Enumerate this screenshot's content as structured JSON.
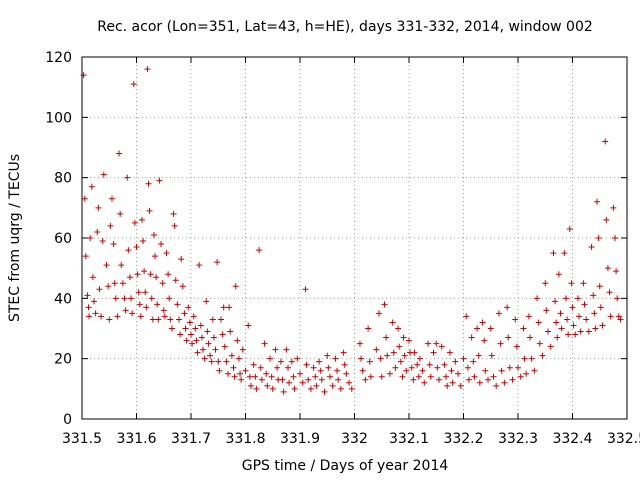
{
  "chart_data": {
    "type": "scatter",
    "title": "Rec. acor (Lon=351, Lat=43, h=HE), days 331-332, 2014, window 002",
    "xlabel": "GPS time / Days of year 2014",
    "ylabel": "STEC from uqrg / TECUs",
    "xlim": [
      331.5,
      332.5
    ],
    "ylim": [
      0,
      120
    ],
    "x_ticks": [
      "331.5",
      "331.6",
      "331.7",
      "331.8",
      "331.9",
      "332",
      "332.1",
      "332.2",
      "332.3",
      "332.4",
      "332.5"
    ],
    "y_ticks": [
      "0",
      "20",
      "40",
      "60",
      "80",
      "100",
      "120"
    ],
    "grid": true,
    "marker": "plus",
    "marker_color": "#cc0000",
    "series": [
      {
        "points": [
          [
            331.503,
            114
          ],
          [
            331.505,
            73
          ],
          [
            331.507,
            54
          ],
          [
            331.51,
            41
          ],
          [
            331.512,
            37
          ],
          [
            331.513,
            34
          ],
          [
            331.515,
            60
          ],
          [
            331.518,
            77
          ],
          [
            331.52,
            47
          ],
          [
            331.522,
            39
          ],
          [
            331.525,
            35
          ],
          [
            331.528,
            62
          ],
          [
            331.53,
            70
          ],
          [
            331.532,
            43
          ],
          [
            331.535,
            34
          ],
          [
            331.538,
            59
          ],
          [
            331.54,
            81
          ],
          [
            331.545,
            51
          ],
          [
            331.548,
            44
          ],
          [
            331.55,
            33
          ],
          [
            331.552,
            64
          ],
          [
            331.555,
            73
          ],
          [
            331.558,
            58
          ],
          [
            331.56,
            45
          ],
          [
            331.562,
            40
          ],
          [
            331.565,
            34
          ],
          [
            331.568,
            88
          ],
          [
            331.57,
            68
          ],
          [
            331.572,
            51
          ],
          [
            331.575,
            45
          ],
          [
            331.578,
            40
          ],
          [
            331.58,
            36
          ],
          [
            331.583,
            80
          ],
          [
            331.585,
            56
          ],
          [
            331.588,
            47
          ],
          [
            331.59,
            40
          ],
          [
            331.592,
            35
          ],
          [
            331.595,
            111
          ],
          [
            331.597,
            65
          ],
          [
            331.6,
            57
          ],
          [
            331.602,
            48
          ],
          [
            331.604,
            42
          ],
          [
            331.606,
            38
          ],
          [
            331.608,
            34
          ],
          [
            331.61,
            66
          ],
          [
            331.612,
            59
          ],
          [
            331.614,
            49
          ],
          [
            331.616,
            42
          ],
          [
            331.618,
            37
          ],
          [
            331.62,
            116
          ],
          [
            331.622,
            78
          ],
          [
            331.624,
            69
          ],
          [
            331.626,
            48
          ],
          [
            331.628,
            40
          ],
          [
            331.63,
            33
          ],
          [
            331.632,
            61
          ],
          [
            331.634,
            54
          ],
          [
            331.636,
            47
          ],
          [
            331.638,
            38
          ],
          [
            331.64,
            33
          ],
          [
            331.642,
            79
          ],
          [
            331.645,
            58
          ],
          [
            331.648,
            45
          ],
          [
            331.65,
            36
          ],
          [
            331.652,
            34
          ],
          [
            331.655,
            55
          ],
          [
            331.658,
            48
          ],
          [
            331.66,
            40
          ],
          [
            331.662,
            33
          ],
          [
            331.665,
            30
          ],
          [
            331.668,
            68
          ],
          [
            331.67,
            64
          ],
          [
            331.672,
            46
          ],
          [
            331.675,
            38
          ],
          [
            331.678,
            33
          ],
          [
            331.68,
            28
          ],
          [
            331.682,
            53
          ],
          [
            331.685,
            44
          ],
          [
            331.688,
            35
          ],
          [
            331.69,
            30
          ],
          [
            331.692,
            26
          ],
          [
            331.695,
            37
          ],
          [
            331.698,
            32
          ],
          [
            331.7,
            28
          ],
          [
            331.702,
            25
          ],
          [
            331.705,
            34
          ],
          [
            331.708,
            30
          ],
          [
            331.71,
            26
          ],
          [
            331.712,
            22
          ],
          [
            331.715,
            51
          ],
          [
            331.718,
            31
          ],
          [
            331.72,
            27
          ],
          [
            331.722,
            23
          ],
          [
            331.725,
            20
          ],
          [
            331.728,
            39
          ],
          [
            331.73,
            29
          ],
          [
            331.732,
            25
          ],
          [
            331.735,
            21
          ],
          [
            331.738,
            19
          ],
          [
            331.74,
            33
          ],
          [
            331.742,
            27
          ],
          [
            331.745,
            23
          ],
          [
            331.748,
            52
          ],
          [
            331.75,
            19
          ],
          [
            331.752,
            16
          ],
          [
            331.755,
            33
          ],
          [
            331.758,
            28
          ],
          [
            331.76,
            37
          ],
          [
            331.762,
            24
          ],
          [
            331.765,
            19
          ],
          [
            331.768,
            15
          ],
          [
            331.77,
            37
          ],
          [
            331.772,
            29
          ],
          [
            331.775,
            21
          ],
          [
            331.778,
            17
          ],
          [
            331.78,
            14
          ],
          [
            331.782,
            44
          ],
          [
            331.785,
            26
          ],
          [
            331.788,
            20
          ],
          [
            331.79,
            15
          ],
          [
            331.792,
            13
          ],
          [
            331.795,
            23
          ],
          [
            331.8,
            16
          ],
          [
            331.805,
            31
          ],
          [
            331.808,
            14
          ],
          [
            331.81,
            11
          ],
          [
            331.815,
            18
          ],
          [
            331.818,
            14
          ],
          [
            331.82,
            10
          ],
          [
            331.825,
            56
          ],
          [
            331.828,
            17
          ],
          [
            331.83,
            13
          ],
          [
            331.835,
            25
          ],
          [
            331.838,
            15
          ],
          [
            331.84,
            11
          ],
          [
            331.845,
            20
          ],
          [
            331.848,
            14
          ],
          [
            331.85,
            10
          ],
          [
            331.855,
            23
          ],
          [
            331.858,
            17
          ],
          [
            331.86,
            13
          ],
          [
            331.865,
            19
          ],
          [
            331.868,
            13
          ],
          [
            331.87,
            9
          ],
          [
            331.875,
            23
          ],
          [
            331.878,
            17
          ],
          [
            331.88,
            12
          ],
          [
            331.885,
            19
          ],
          [
            331.888,
            14
          ],
          [
            331.89,
            10
          ],
          [
            331.895,
            20
          ],
          [
            331.9,
            15
          ],
          [
            331.905,
            12
          ],
          [
            331.91,
            43
          ],
          [
            331.912,
            18
          ],
          [
            331.915,
            13
          ],
          [
            331.92,
            10
          ],
          [
            331.925,
            17
          ],
          [
            331.928,
            14
          ],
          [
            331.93,
            11
          ],
          [
            331.935,
            19
          ],
          [
            331.938,
            16
          ],
          [
            331.94,
            13
          ],
          [
            331.945,
            9
          ],
          [
            331.95,
            21
          ],
          [
            331.952,
            17
          ],
          [
            331.955,
            14
          ],
          [
            331.96,
            11
          ],
          [
            331.965,
            20
          ],
          [
            331.968,
            16
          ],
          [
            331.97,
            13
          ],
          [
            331.975,
            10
          ],
          [
            331.98,
            22
          ],
          [
            331.982,
            18
          ],
          [
            331.985,
            15
          ],
          [
            331.99,
            12
          ],
          [
            331.995,
            10
          ],
          [
            332.01,
            25
          ],
          [
            332.012,
            20
          ],
          [
            332.015,
            16
          ],
          [
            332.02,
            13
          ],
          [
            332.025,
            30
          ],
          [
            332.028,
            19
          ],
          [
            332.03,
            14
          ],
          [
            332.04,
            23
          ],
          [
            332.045,
            35
          ],
          [
            332.048,
            20
          ],
          [
            332.05,
            14
          ],
          [
            332.055,
            38
          ],
          [
            332.058,
            27
          ],
          [
            332.06,
            21
          ],
          [
            332.065,
            15
          ],
          [
            332.07,
            32
          ],
          [
            332.072,
            22
          ],
          [
            332.075,
            17
          ],
          [
            332.08,
            30
          ],
          [
            332.082,
            24
          ],
          [
            332.085,
            19
          ],
          [
            332.088,
            14
          ],
          [
            332.09,
            27
          ],
          [
            332.092,
            21
          ],
          [
            332.095,
            16
          ],
          [
            332.1,
            26
          ],
          [
            332.102,
            22
          ],
          [
            332.105,
            17
          ],
          [
            332.108,
            13
          ],
          [
            332.11,
            22
          ],
          [
            332.115,
            18
          ],
          [
            332.118,
            14
          ],
          [
            332.12,
            20
          ],
          [
            332.125,
            16
          ],
          [
            332.128,
            12
          ],
          [
            332.135,
            25
          ],
          [
            332.138,
            18
          ],
          [
            332.14,
            14
          ],
          [
            332.145,
            22
          ],
          [
            332.15,
            25
          ],
          [
            332.152,
            17
          ],
          [
            332.155,
            13
          ],
          [
            332.16,
            24
          ],
          [
            332.165,
            18
          ],
          [
            332.168,
            14
          ],
          [
            332.17,
            11
          ],
          [
            332.175,
            22
          ],
          [
            332.178,
            16
          ],
          [
            332.18,
            12
          ],
          [
            332.185,
            19
          ],
          [
            332.19,
            15
          ],
          [
            332.195,
            11
          ],
          [
            332.2,
            20
          ],
          [
            332.205,
            34
          ],
          [
            332.208,
            17
          ],
          [
            332.21,
            13
          ],
          [
            332.215,
            27
          ],
          [
            332.218,
            19
          ],
          [
            332.22,
            14
          ],
          [
            332.225,
            30
          ],
          [
            332.228,
            21
          ],
          [
            332.23,
            12
          ],
          [
            332.235,
            32
          ],
          [
            332.238,
            26
          ],
          [
            332.24,
            16
          ],
          [
            332.245,
            13
          ],
          [
            332.25,
            30
          ],
          [
            332.252,
            21
          ],
          [
            332.255,
            14
          ],
          [
            332.26,
            11
          ],
          [
            332.265,
            35
          ],
          [
            332.268,
            25
          ],
          [
            332.27,
            16
          ],
          [
            332.275,
            12
          ],
          [
            332.28,
            37
          ],
          [
            332.282,
            27
          ],
          [
            332.285,
            17
          ],
          [
            332.29,
            13
          ],
          [
            332.295,
            33
          ],
          [
            332.298,
            24
          ],
          [
            332.3,
            17
          ],
          [
            332.305,
            14
          ],
          [
            332.31,
            30
          ],
          [
            332.312,
            20
          ],
          [
            332.315,
            15
          ],
          [
            332.32,
            34
          ],
          [
            332.322,
            27
          ],
          [
            332.325,
            20
          ],
          [
            332.33,
            16
          ],
          [
            332.335,
            40
          ],
          [
            332.338,
            32
          ],
          [
            332.34,
            25
          ],
          [
            332.345,
            21
          ],
          [
            332.35,
            45
          ],
          [
            332.352,
            36
          ],
          [
            332.355,
            29
          ],
          [
            332.36,
            24
          ],
          [
            332.365,
            55
          ],
          [
            332.368,
            39
          ],
          [
            332.37,
            32
          ],
          [
            332.372,
            27
          ],
          [
            332.375,
            48
          ],
          [
            332.378,
            35
          ],
          [
            332.38,
            30
          ],
          [
            332.385,
            55
          ],
          [
            332.388,
            40
          ],
          [
            332.39,
            33
          ],
          [
            332.392,
            28
          ],
          [
            332.395,
            63
          ],
          [
            332.398,
            45
          ],
          [
            332.4,
            37
          ],
          [
            332.402,
            31
          ],
          [
            332.405,
            28
          ],
          [
            332.41,
            40
          ],
          [
            332.412,
            34
          ],
          [
            332.415,
            29
          ],
          [
            332.42,
            45
          ],
          [
            332.422,
            38
          ],
          [
            332.425,
            33
          ],
          [
            332.43,
            29
          ],
          [
            332.435,
            57
          ],
          [
            332.438,
            41
          ],
          [
            332.44,
            35
          ],
          [
            332.442,
            30
          ],
          [
            332.445,
            72
          ],
          [
            332.448,
            60
          ],
          [
            332.45,
            44
          ],
          [
            332.452,
            37
          ],
          [
            332.455,
            31
          ],
          [
            332.46,
            92
          ],
          [
            332.462,
            66
          ],
          [
            332.465,
            50
          ],
          [
            332.468,
            42
          ],
          [
            332.47,
            34
          ],
          [
            332.475,
            70
          ],
          [
            332.478,
            60
          ],
          [
            332.48,
            49
          ],
          [
            332.482,
            40
          ],
          [
            332.485,
            34
          ],
          [
            332.488,
            33
          ]
        ]
      }
    ]
  }
}
